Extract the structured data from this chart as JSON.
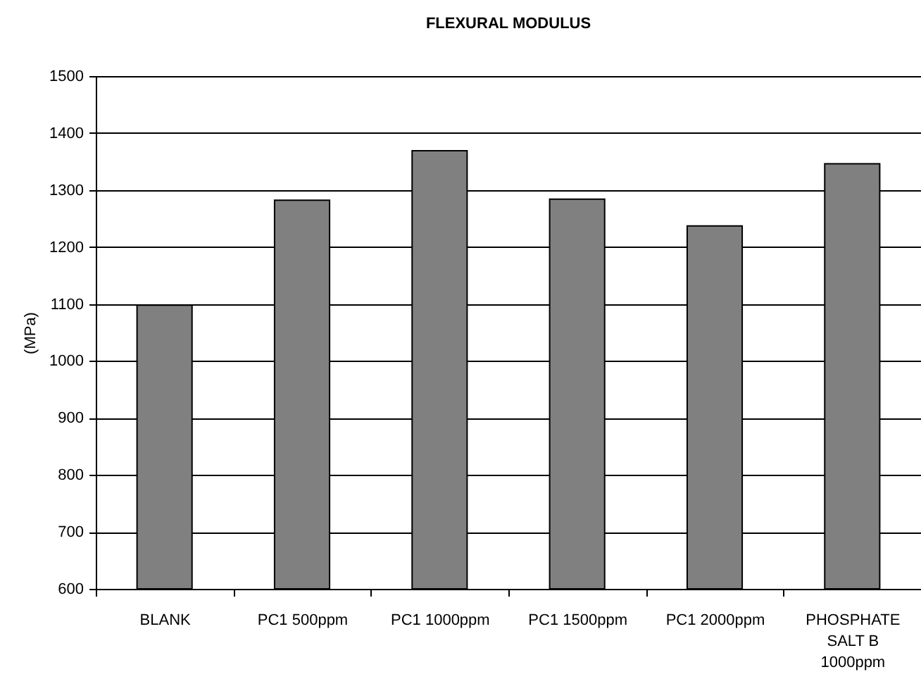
{
  "chart_data": {
    "type": "bar",
    "title": "FLEXURAL MODULUS",
    "ylabel": "(MPa)",
    "categories": [
      "BLANK",
      "PC1 500ppm",
      "PC1 1000ppm",
      "PC1 1500ppm",
      "PC1 2000ppm",
      "PHOSPHATE\nSALT B\n1000ppm"
    ],
    "values": [
      1098,
      1282,
      1369,
      1284,
      1237,
      1346
    ],
    "color": "#808080",
    "ylim": [
      600,
      1500
    ],
    "yticks": [
      600,
      700,
      800,
      900,
      1000,
      1100,
      1200,
      1300,
      1400,
      1500
    ],
    "grid": "y"
  }
}
